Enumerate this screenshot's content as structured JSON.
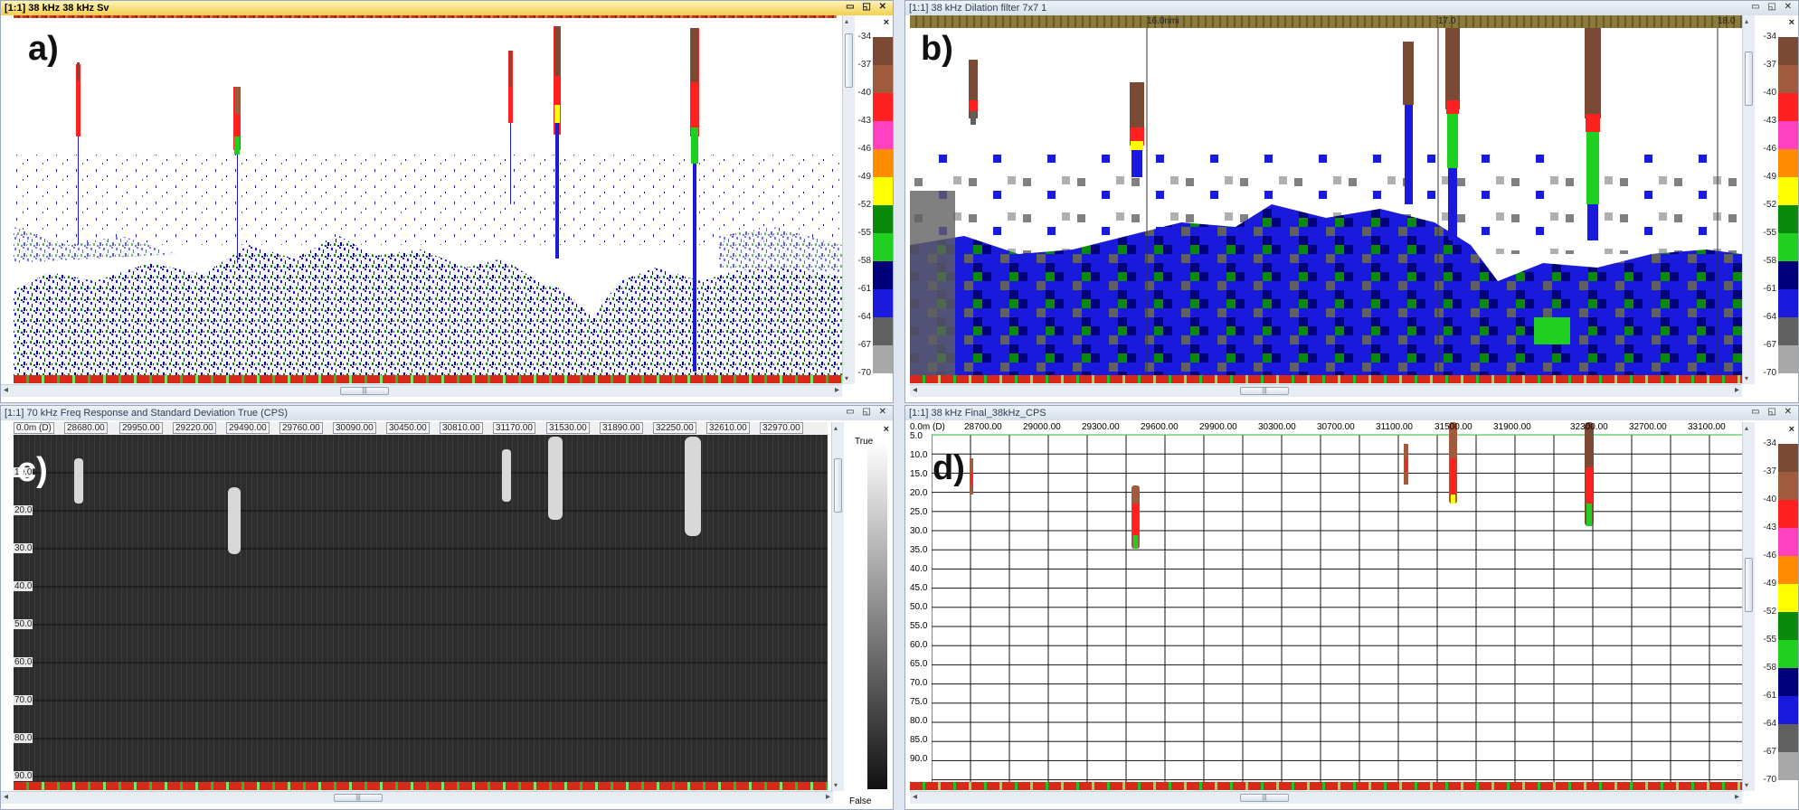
{
  "colors": {
    "active_title": "#f3cf4d",
    "echogram_blue": "#1b1bd0",
    "bottom_line": "#d62a1b",
    "surface_line": "#22c02a"
  },
  "panel_a": {
    "title": "[1:1] 38 kHz 38 kHz Sv",
    "label": "a)",
    "window_buttons": "▭ ◱ ✕"
  },
  "panel_b": {
    "title": "[1:1] 38 kHz Dilation filter 7x7 1",
    "label": "b)",
    "window_buttons": "▭ ◱ ✕",
    "markers": [
      "16.0nmi",
      "17.0",
      "18.0"
    ]
  },
  "panel_c": {
    "title": "[1:1] 70 kHz Freq Response and Standard Deviation True (CPS)",
    "label": "c)",
    "window_buttons": "▭ ◱ ✕",
    "x_labels": [
      "0.0m (D)",
      "28680.00",
      "29950.00",
      "29220.00",
      "29490.00",
      "29760.00",
      "30090.00",
      "30450.00",
      "30810.00",
      "31170.00",
      "31530.00",
      "31890.00",
      "32250.00",
      "32610.00",
      "32970.00"
    ],
    "y_labels": [
      "10.0",
      "20.0",
      "30.0",
      "40.0",
      "50.0",
      "60.0",
      "70.0",
      "80.0",
      "90.0"
    ],
    "legend_true": "True",
    "legend_false": "False"
  },
  "panel_d": {
    "title": "[1:1] 38 kHz Final_38kHz_CPS",
    "label": "d)",
    "window_buttons": "▭ ◱ ✕",
    "x_labels": [
      "0.0m (D)",
      "28700.00",
      "29000.00",
      "29300.00",
      "29600.00",
      "29900.00",
      "30300.00",
      "30700.00",
      "31100.00",
      "31500.00",
      "31900.00",
      "32300.00",
      "32700.00",
      "33100.00"
    ],
    "y_labels": [
      "5.0",
      "10.0",
      "15.0",
      "20.0",
      "25.0",
      "30.0",
      "35.0",
      "40.0",
      "45.0",
      "50.0",
      "55.0",
      "60.0",
      "65.0",
      "70.0",
      "75.0",
      "80.0",
      "85.0",
      "90.0"
    ]
  },
  "color_scale": {
    "close": "×",
    "ticks": [
      "-34",
      "-37",
      "-40",
      "-43",
      "-46",
      "-49",
      "-52",
      "-55",
      "-58",
      "-61",
      "-64",
      "-67",
      "-70"
    ],
    "colors": [
      "#7a4a35",
      "#a05a3c",
      "#ff2020",
      "#ff40c0",
      "#ff8c00",
      "#ffff00",
      "#0a8a0a",
      "#20d020",
      "#00007a",
      "#1a1adc",
      "#606060",
      "#a8a8a8"
    ]
  },
  "scroll": {
    "grip": "|||",
    "left": "◂",
    "right": "▸",
    "up": "▴",
    "down": "▾"
  }
}
